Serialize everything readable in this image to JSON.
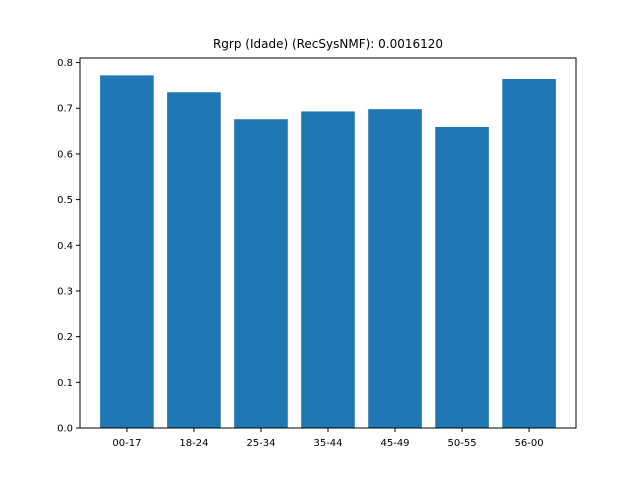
{
  "chart_data": {
    "type": "bar",
    "title": "Rgrp (Idade) (RecSysNMF): 0.0016120",
    "xlabel": "",
    "ylabel": "",
    "categories": [
      "00-17",
      "18-24",
      "25-34",
      "35-44",
      "45-49",
      "50-55",
      "56-00"
    ],
    "values": [
      0.772,
      0.735,
      0.676,
      0.693,
      0.698,
      0.659,
      0.764
    ],
    "ylim": [
      0,
      0.81
    ],
    "yticks": [
      0.0,
      0.1,
      0.2,
      0.3,
      0.4,
      0.5,
      0.6,
      0.7,
      0.8
    ],
    "ytick_labels": [
      "0.0",
      "0.1",
      "0.2",
      "0.3",
      "0.4",
      "0.5",
      "0.6",
      "0.7",
      "0.8"
    ],
    "grid": false,
    "bar_color": "#1f77b4"
  }
}
